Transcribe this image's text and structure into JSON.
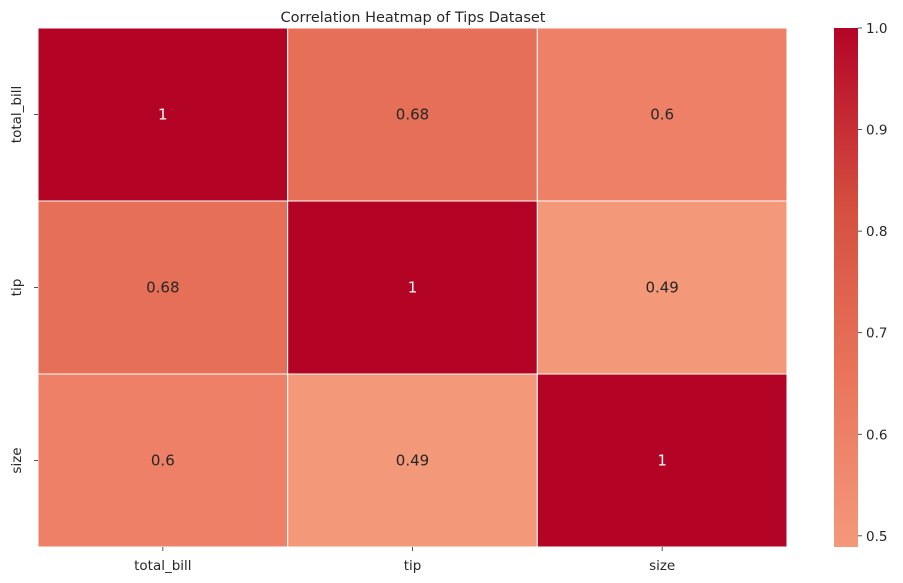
{
  "chart_data": {
    "type": "heatmap",
    "title": "Correlation Heatmap of Tips Dataset",
    "x_categories": [
      "total_bill",
      "tip",
      "size"
    ],
    "y_categories": [
      "total_bill",
      "tip",
      "size"
    ],
    "values": [
      [
        1,
        0.68,
        0.6
      ],
      [
        0.68,
        1,
        0.49
      ],
      [
        0.6,
        0.49,
        1
      ]
    ],
    "cell_labels": [
      [
        "1",
        "0.68",
        "0.6"
      ],
      [
        "0.68",
        "1",
        "0.49"
      ],
      [
        "0.6",
        "0.49",
        "1"
      ]
    ],
    "colorbar": {
      "range": [
        0.489,
        1.0
      ],
      "ticks": [
        0.5,
        0.6,
        0.7,
        0.8,
        0.9,
        1.0
      ],
      "tick_labels": [
        "0.5",
        "0.6",
        "0.7",
        "0.8",
        "0.9",
        "1.0"
      ],
      "colormap": "coolwarm (upper half)"
    },
    "colors": {
      "low": "#f4987a",
      "high": "#b40426",
      "cell_text_dark": "#262626",
      "cell_text_light": "#ffffff"
    }
  }
}
